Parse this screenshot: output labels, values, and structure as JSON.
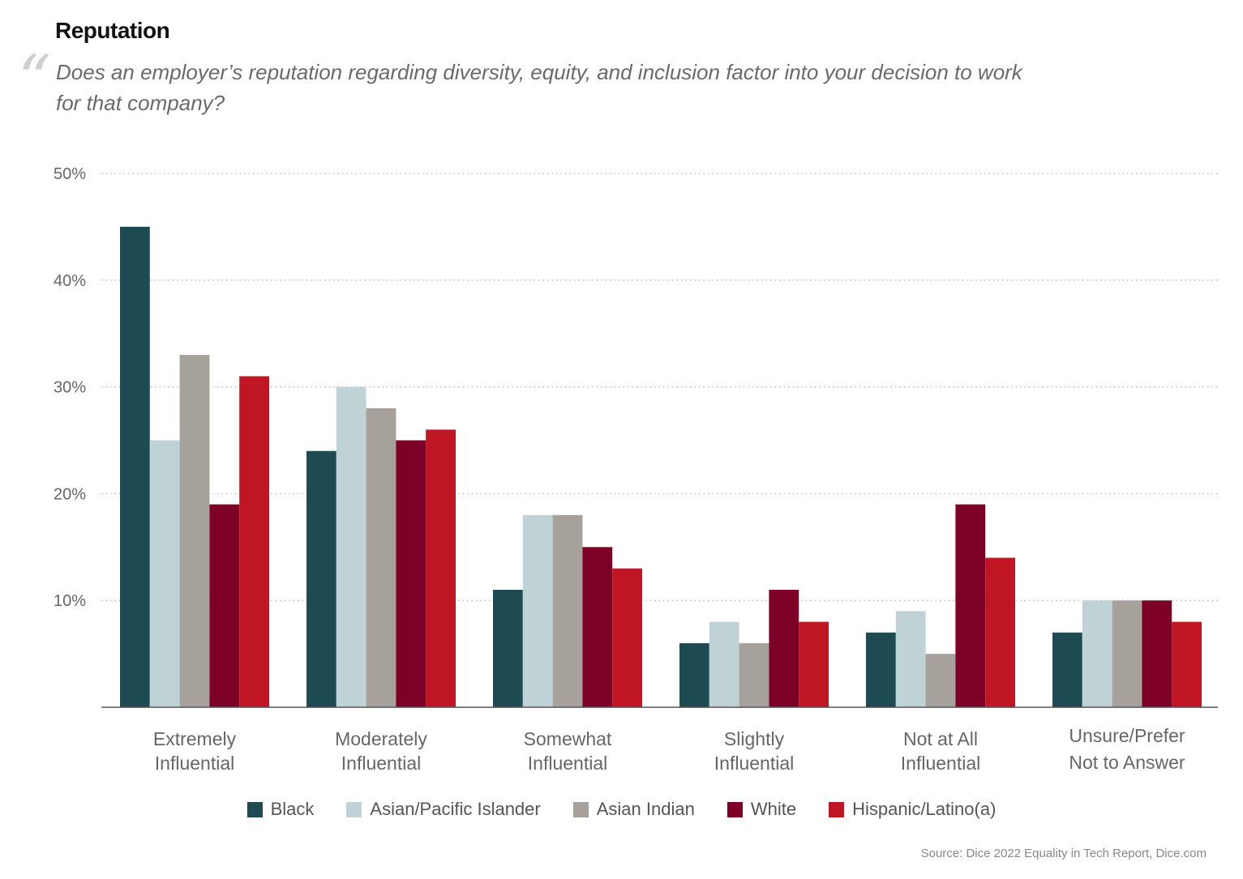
{
  "header": {
    "title": "Reputation",
    "quote_mark": "“",
    "question": "Does an employer’s reputation regarding diversity, equity, and inclusion factor into your decision to work for that company?"
  },
  "chart_data": {
    "type": "bar",
    "categories": [
      [
        "Extremely",
        "Influential"
      ],
      [
        "Moderately",
        "Influential"
      ],
      [
        "Somewhat",
        "Influential"
      ],
      [
        "Slightly",
        "Influential"
      ],
      [
        "Not at All",
        "Influential"
      ],
      [
        "Unsure/Prefer",
        "Not to Answer"
      ]
    ],
    "series": [
      {
        "name": "Black",
        "color": "#1e4a52",
        "values": [
          45,
          24,
          11,
          6,
          7,
          7
        ]
      },
      {
        "name": "Asian/Pacific Islander",
        "color": "#bfd2d6",
        "values": [
          25,
          30,
          18,
          8,
          9,
          10
        ]
      },
      {
        "name": "Asian Indian",
        "color": "#a6a29b",
        "values": [
          33,
          28,
          18,
          6,
          5,
          10
        ]
      },
      {
        "name": "White",
        "color": "#7d0026",
        "values": [
          19,
          25,
          15,
          11,
          19,
          10
        ]
      },
      {
        "name": "Hispanic/Latino(a)",
        "color": "#c01522",
        "values": [
          31,
          26,
          13,
          8,
          14,
          8
        ]
      }
    ],
    "yticks": [
      {
        "value": 10,
        "label": "10%"
      },
      {
        "value": 20,
        "label": "20%"
      },
      {
        "value": 30,
        "label": "30%"
      },
      {
        "value": 40,
        "label": "40%"
      },
      {
        "value": 50,
        "label": "50%"
      }
    ],
    "ylim": [
      0,
      50
    ],
    "grid": "dotted horizontal",
    "legend_position": "bottom"
  },
  "footer": {
    "source": "Source: Dice 2022 Equality in Tech Report, Dice.com"
  }
}
